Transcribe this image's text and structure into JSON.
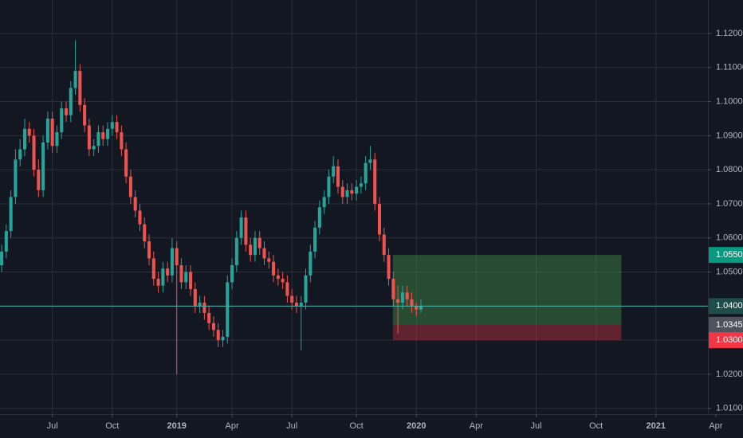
{
  "chart_data": {
    "type": "candlestick",
    "up_color": "#26a69a",
    "down_color": "#ef5350",
    "grid": true,
    "ylim": [
      1.0013,
      1.1298
    ],
    "yticks": [
      {
        "value": 1.01,
        "label": "1.01000"
      },
      {
        "value": 1.02,
        "label": "1.02000"
      },
      {
        "value": 1.03,
        "label": "1.03000"
      },
      {
        "value": 1.04,
        "label": "1.04000"
      },
      {
        "value": 1.05,
        "label": "1.05000"
      },
      {
        "value": 1.06,
        "label": "1.06000"
      },
      {
        "value": 1.07,
        "label": "1.07000"
      },
      {
        "value": 1.08,
        "label": "1.08000"
      },
      {
        "value": 1.09,
        "label": "1.09000"
      },
      {
        "value": 1.1,
        "label": "1.10000"
      },
      {
        "value": 1.11,
        "label": "1.11000"
      },
      {
        "value": 1.12,
        "label": "1.12000"
      }
    ],
    "xlim": [
      -0.36,
      160.9
    ],
    "xticks": [
      {
        "value": 11,
        "label": "Jul"
      },
      {
        "value": 24,
        "label": "Oct"
      },
      {
        "value": 38,
        "label": "2019"
      },
      {
        "value": 50,
        "label": "Apr"
      },
      {
        "value": 63,
        "label": "Jul"
      },
      {
        "value": 77,
        "label": "Oct"
      },
      {
        "value": 90,
        "label": "2020"
      },
      {
        "value": 103,
        "label": "Apr"
      },
      {
        "value": 116,
        "label": "Jul"
      },
      {
        "value": 129,
        "label": "Oct"
      },
      {
        "value": 142,
        "label": "2021"
      },
      {
        "value": 155,
        "label": "Apr"
      }
    ],
    "open": [
      1.052,
      1.056,
      1.062,
      1.072,
      1.083,
      1.086,
      1.092,
      1.09,
      1.08,
      1.074,
      1.088,
      1.095,
      1.087,
      1.091,
      1.098,
      1.096,
      1.104,
      1.109,
      1.099,
      1.093,
      1.086,
      1.087,
      1.091,
      1.089,
      1.092,
      1.094,
      1.091,
      1.086,
      1.078,
      1.072,
      1.068,
      1.064,
      1.059,
      1.054,
      1.048,
      1.046,
      1.051,
      1.049,
      1.057,
      1.052,
      1.047,
      1.05,
      1.045,
      1.04,
      1.041,
      1.038,
      1.035,
      1.033,
      1.03,
      1.031,
      1.047,
      1.052,
      1.06,
      1.066,
      1.058,
      1.055,
      1.06,
      1.057,
      1.054,
      1.053,
      1.049,
      1.048,
      1.047,
      1.043,
      1.041,
      1.04,
      1.041,
      1.049,
      1.056,
      1.063,
      1.069,
      1.072,
      1.078,
      1.081,
      1.075,
      1.072,
      1.074,
      1.073,
      1.075,
      1.076,
      1.082,
      1.083,
      1.07,
      1.061,
      1.055,
      1.048,
      1.042,
      1.041,
      1.044,
      1.042,
      1.04,
      1.039
    ],
    "high": [
      1.058,
      1.064,
      1.074,
      1.086,
      1.089,
      1.095,
      1.094,
      1.092,
      1.083,
      1.09,
      1.097,
      1.097,
      1.093,
      1.1,
      1.1,
      1.106,
      1.118,
      1.111,
      1.101,
      1.095,
      1.089,
      1.093,
      1.093,
      1.094,
      1.096,
      1.096,
      1.093,
      1.088,
      1.08,
      1.074,
      1.07,
      1.066,
      1.061,
      1.056,
      1.05,
      1.053,
      1.053,
      1.06,
      1.059,
      1.054,
      1.052,
      1.052,
      1.047,
      1.043,
      1.043,
      1.04,
      1.037,
      1.035,
      1.033,
      1.049,
      1.054,
      1.062,
      1.068,
      1.068,
      1.06,
      1.062,
      1.062,
      1.059,
      1.056,
      1.055,
      1.051,
      1.05,
      1.049,
      1.045,
      1.043,
      1.043,
      1.051,
      1.058,
      1.065,
      1.071,
      1.074,
      1.08,
      1.084,
      1.083,
      1.077,
      1.076,
      1.076,
      1.077,
      1.078,
      1.084,
      1.087,
      1.085,
      1.072,
      1.063,
      1.057,
      1.05,
      1.046,
      1.046,
      1.046,
      1.044,
      1.041,
      1.042
    ],
    "low": [
      1.05,
      1.054,
      1.06,
      1.07,
      1.081,
      1.084,
      1.088,
      1.078,
      1.072,
      1.072,
      1.086,
      1.085,
      1.085,
      1.089,
      1.094,
      1.094,
      1.102,
      1.097,
      1.091,
      1.084,
      1.084,
      1.085,
      1.087,
      1.087,
      1.09,
      1.089,
      1.084,
      1.076,
      1.07,
      1.066,
      1.062,
      1.057,
      1.052,
      1.046,
      1.044,
      1.044,
      1.047,
      1.047,
      1.02,
      1.045,
      1.045,
      1.043,
      1.038,
      1.038,
      1.036,
      1.033,
      1.031,
      1.028,
      1.028,
      1.029,
      1.045,
      1.05,
      1.058,
      1.056,
      1.053,
      1.053,
      1.055,
      1.052,
      1.051,
      1.047,
      1.046,
      1.045,
      1.041,
      1.039,
      1.038,
      1.027,
      1.039,
      1.047,
      1.054,
      1.061,
      1.067,
      1.07,
      1.076,
      1.073,
      1.07,
      1.07,
      1.071,
      1.071,
      1.073,
      1.074,
      1.08,
      1.068,
      1.059,
      1.053,
      1.046,
      1.04,
      1.032,
      1.039,
      1.04,
      1.038,
      1.037,
      1.038
    ],
    "close": [
      1.056,
      1.062,
      1.072,
      1.083,
      1.086,
      1.092,
      1.09,
      1.08,
      1.074,
      1.088,
      1.095,
      1.087,
      1.091,
      1.098,
      1.096,
      1.104,
      1.109,
      1.099,
      1.093,
      1.086,
      1.087,
      1.091,
      1.089,
      1.092,
      1.094,
      1.091,
      1.086,
      1.078,
      1.072,
      1.068,
      1.064,
      1.059,
      1.054,
      1.048,
      1.046,
      1.051,
      1.049,
      1.057,
      1.052,
      1.047,
      1.05,
      1.045,
      1.04,
      1.041,
      1.038,
      1.035,
      1.033,
      1.03,
      1.031,
      1.047,
      1.052,
      1.06,
      1.066,
      1.058,
      1.055,
      1.06,
      1.057,
      1.054,
      1.053,
      1.049,
      1.048,
      1.047,
      1.043,
      1.041,
      1.04,
      1.041,
      1.049,
      1.056,
      1.063,
      1.069,
      1.072,
      1.078,
      1.081,
      1.075,
      1.072,
      1.074,
      1.073,
      1.075,
      1.076,
      1.082,
      1.083,
      1.07,
      1.061,
      1.055,
      1.048,
      1.042,
      1.041,
      1.044,
      1.042,
      1.04,
      1.039,
      1.04
    ],
    "current_price": {
      "value": 1.04001,
      "label": "1.04001"
    },
    "position": {
      "start": 84.9,
      "end": 134.5,
      "target": {
        "value": 1.055,
        "label": "1.05500"
      },
      "entry": {
        "value": 1.0345,
        "label": "1.03450"
      },
      "stop": {
        "value": 1.03,
        "label": "1.03000"
      }
    }
  }
}
